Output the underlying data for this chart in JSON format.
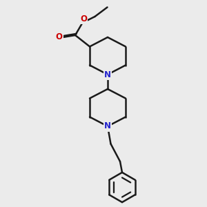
{
  "bg_color": "#ebebeb",
  "bond_color": "#1a1a1a",
  "N_color": "#2222cc",
  "O_color": "#cc0000",
  "line_width": 1.8,
  "figsize": [
    3.0,
    3.0
  ],
  "dpi": 100,
  "xlim": [
    0,
    10
  ],
  "ylim": [
    0,
    10
  ]
}
